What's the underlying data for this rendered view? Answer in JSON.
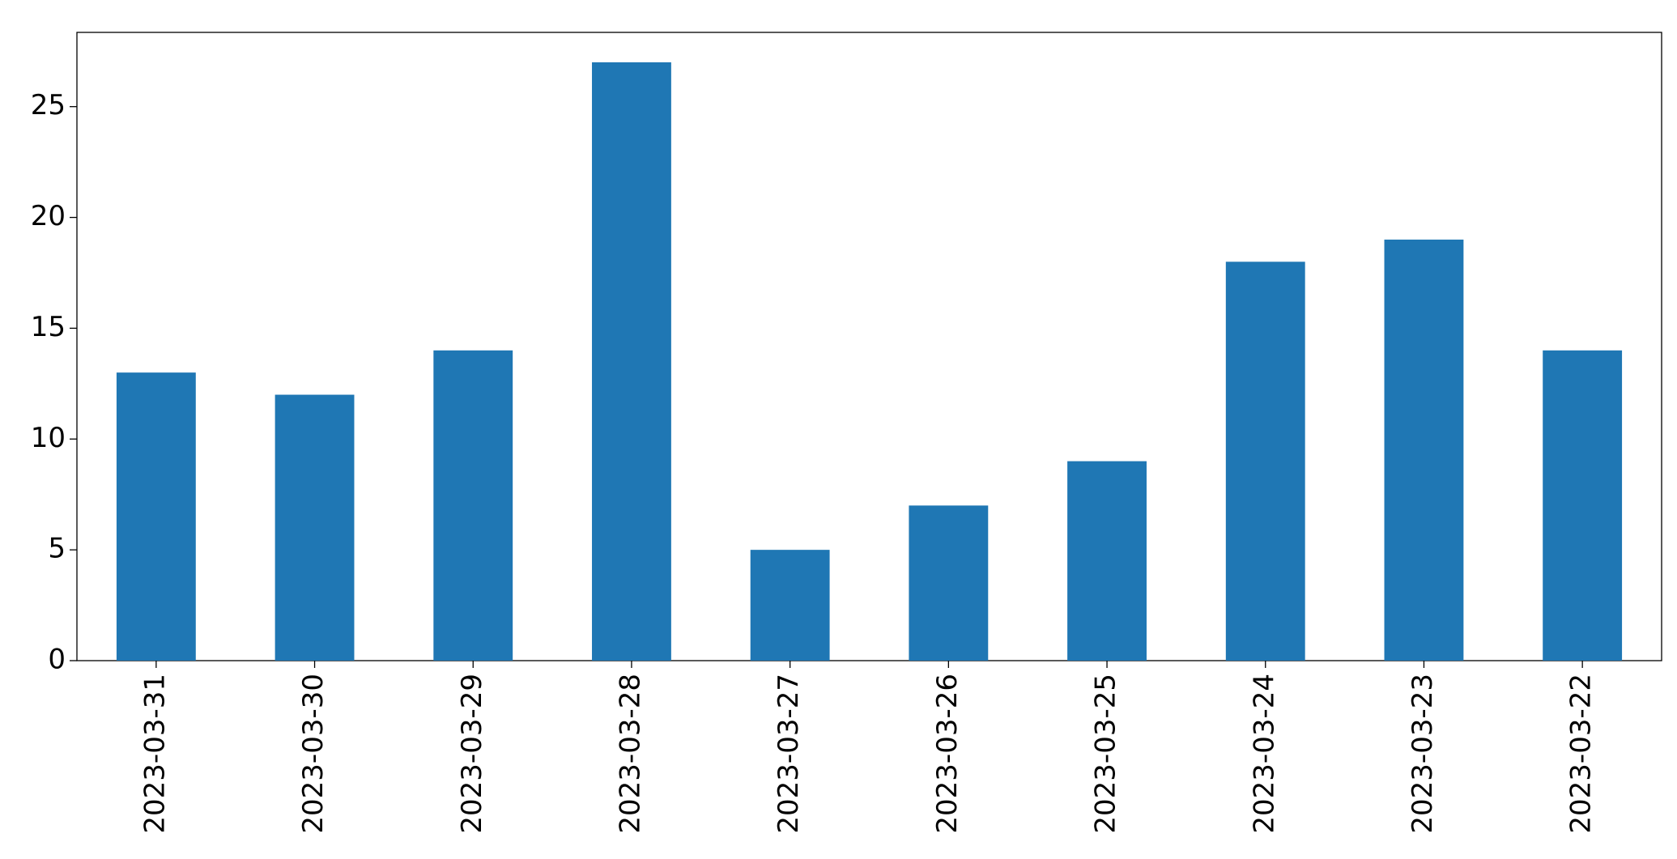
{
  "chart_data": {
    "type": "bar",
    "categories": [
      "2023-03-31",
      "2023-03-30",
      "2023-03-29",
      "2023-03-28",
      "2023-03-27",
      "2023-03-26",
      "2023-03-25",
      "2023-03-24",
      "2023-03-23",
      "2023-03-22"
    ],
    "values": [
      13,
      12,
      14,
      27,
      5,
      7,
      9,
      18,
      19,
      14
    ],
    "color": "#1f77b4",
    "ylim": [
      0,
      28.35
    ],
    "yticks": [
      0,
      5,
      10,
      15,
      20,
      25
    ],
    "grid": false
  }
}
